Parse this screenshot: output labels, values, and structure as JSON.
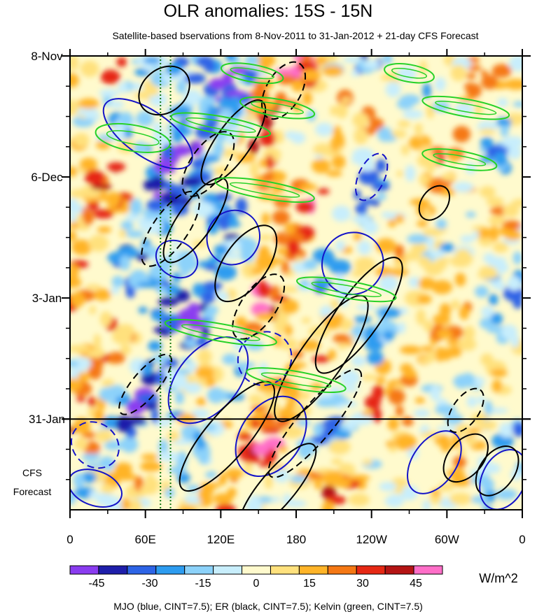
{
  "chart_data": {
    "type": "heatmap",
    "title": "OLR anomalies: 15S - 15N",
    "subtitle": "Satellite-based bservations from 8-Nov-2011 to 31-Jan-2012 + 21-day CFS Forecast",
    "x_ticks": [
      {
        "lon": 0,
        "label": "0"
      },
      {
        "lon": 60,
        "label": "60E"
      },
      {
        "lon": 120,
        "label": "120E"
      },
      {
        "lon": 180,
        "label": "180"
      },
      {
        "lon": 240,
        "label": "120W"
      },
      {
        "lon": 300,
        "label": "60W"
      },
      {
        "lon": 360,
        "label": "0"
      }
    ],
    "xlim": [
      0,
      360
    ],
    "y_ticks": [
      {
        "day": 0,
        "label": "8-Nov"
      },
      {
        "day": 28,
        "label": "6-Dec"
      },
      {
        "day": 56,
        "label": "3-Jan"
      },
      {
        "day": 84,
        "label": "31-Jan"
      }
    ],
    "ylim_days": [
      0,
      105
    ],
    "forecast_start_day": 84,
    "forecast_label_line1": "CFS",
    "forecast_label_line2": "Forecast",
    "colorbar": {
      "unit": "W/m^2",
      "tick_labels": [
        "-45",
        "-30",
        "-15",
        "0",
        "15",
        "30",
        "45"
      ],
      "tick_values": [
        -45,
        -30,
        -15,
        0,
        15,
        30,
        45
      ],
      "bounds": [
        -52.5,
        52.5
      ],
      "colors": [
        "#8a3cf0",
        "#1e1eaa",
        "#2d64e6",
        "#2d9cf0",
        "#8cd2fa",
        "#c8eefc",
        "#fffacd",
        "#ffe17d",
        "#ffb428",
        "#f57814",
        "#e62814",
        "#b41414",
        "#ff6ec8"
      ]
    },
    "footer": "MJO (blue, CINT=7.5); ER (black, CINT=7.5); Kelvin (green, CINT=7.5)",
    "colors": {
      "mjo": "#1414c8",
      "er": "#000000",
      "kelvin": "#28d228",
      "vertical_lines": "#147814"
    },
    "features": {
      "mjo_contours": [
        {
          "lon": 62,
          "day": 18,
          "rlon": 18,
          "rday": 12,
          "angle": -55,
          "dash": false
        },
        {
          "lon": 85,
          "day": 47,
          "rlon": 14,
          "rday": 5,
          "angle": -60,
          "dash": false
        },
        {
          "lon": 130,
          "day": 42,
          "rlon": 22,
          "rday": 6,
          "angle": -60,
          "dash": false
        },
        {
          "lon": 225,
          "day": 48,
          "rlon": 25,
          "rday": 7,
          "angle": -55,
          "dash": false
        },
        {
          "lon": 110,
          "day": 75,
          "rlon": 40,
          "rday": 7,
          "angle": -50,
          "dash": false
        },
        {
          "lon": 160,
          "day": 88,
          "rlon": 35,
          "rday": 7,
          "angle": -55,
          "dash": false
        },
        {
          "lon": 290,
          "day": 94,
          "rlon": 28,
          "rday": 5,
          "angle": -55,
          "dash": false
        },
        {
          "lon": 345,
          "day": 98,
          "rlon": 25,
          "rday": 5,
          "angle": -65,
          "dash": false
        },
        {
          "lon": 20,
          "day": 90,
          "rlon": 20,
          "rday": 5,
          "angle": 40,
          "dash": true
        },
        {
          "lon": 240,
          "day": 28,
          "rlon": 20,
          "rday": 3,
          "angle": -65,
          "dash": true
        },
        {
          "lon": 155,
          "day": 70,
          "rlon": 22,
          "rday": 6,
          "angle": -45,
          "dash": true
        },
        {
          "lon": 20,
          "day": 100,
          "rlon": 22,
          "rday": 4,
          "angle": 20,
          "dash": false
        }
      ],
      "er_contours": [
        {
          "lon": 75,
          "day": 8,
          "rlon": 22,
          "rday": 5,
          "angle": -40,
          "dash": false
        },
        {
          "lon": 130,
          "day": 20,
          "rlon": 40,
          "rday": 4,
          "angle": -55,
          "dash": false
        },
        {
          "lon": 100,
          "day": 38,
          "rlon": 40,
          "rday": 4,
          "angle": -55,
          "dash": false
        },
        {
          "lon": 140,
          "day": 48,
          "rlon": 35,
          "rday": 5,
          "angle": -55,
          "dash": false
        },
        {
          "lon": 200,
          "day": 70,
          "rlon": 60,
          "rday": 5,
          "angle": -55,
          "dash": false
        },
        {
          "lon": 230,
          "day": 60,
          "rlon": 55,
          "rday": 5,
          "angle": -55,
          "dash": false
        },
        {
          "lon": 125,
          "day": 88,
          "rlon": 55,
          "rday": 5,
          "angle": -50,
          "dash": false
        },
        {
          "lon": 165,
          "day": 100,
          "rlon": 45,
          "rday": 4,
          "angle": -50,
          "dash": false
        },
        {
          "lon": 290,
          "day": 34,
          "rlon": 15,
          "rday": 3,
          "angle": -55,
          "dash": false
        },
        {
          "lon": 315,
          "day": 93,
          "rlon": 22,
          "rday": 4,
          "angle": -50,
          "dash": false
        },
        {
          "lon": 340,
          "day": 96,
          "rlon": 22,
          "rday": 4,
          "angle": -55,
          "dash": false
        },
        {
          "lon": 110,
          "day": 25,
          "rlon": 30,
          "rday": 4,
          "angle": -55,
          "dash": true
        },
        {
          "lon": 80,
          "day": 40,
          "rlon": 35,
          "rday": 4,
          "angle": -55,
          "dash": true
        },
        {
          "lon": 150,
          "day": 58,
          "rlon": 30,
          "rday": 4,
          "angle": -55,
          "dash": true
        },
        {
          "lon": 195,
          "day": 85,
          "rlon": 55,
          "rday": 4,
          "angle": -50,
          "dash": true
        },
        {
          "lon": 60,
          "day": 76,
          "rlon": 30,
          "rday": 3,
          "angle": -50,
          "dash": true
        },
        {
          "lon": 315,
          "day": 82,
          "rlon": 20,
          "rday": 3,
          "angle": -55,
          "dash": true
        },
        {
          "lon": 170,
          "day": 8,
          "rlon": 25,
          "rday": 4,
          "angle": -60,
          "dash": true
        }
      ],
      "kelvin_contours": [
        {
          "lon": 50,
          "day": 19,
          "rlon": 30,
          "rday": 3,
          "angle": 10
        },
        {
          "lon": 145,
          "day": 4,
          "rlon": 25,
          "rday": 2,
          "angle": 10
        },
        {
          "lon": 165,
          "day": 12,
          "rlon": 30,
          "rday": 2,
          "angle": 10
        },
        {
          "lon": 120,
          "day": 16,
          "rlon": 40,
          "rday": 2,
          "angle": 10
        },
        {
          "lon": 270,
          "day": 4,
          "rlon": 20,
          "rday": 2,
          "angle": 10
        },
        {
          "lon": 315,
          "day": 12,
          "rlon": 35,
          "rday": 2,
          "angle": 10
        },
        {
          "lon": 310,
          "day": 24,
          "rlon": 30,
          "rday": 2,
          "angle": 10
        },
        {
          "lon": 155,
          "day": 31,
          "rlon": 40,
          "rday": 2,
          "angle": 10
        },
        {
          "lon": 220,
          "day": 54,
          "rlon": 40,
          "rday": 2,
          "angle": 10
        },
        {
          "lon": 120,
          "day": 64,
          "rlon": 45,
          "rday": 2,
          "angle": 10
        },
        {
          "lon": 180,
          "day": 75,
          "rlon": 40,
          "rday": 2,
          "angle": 10
        }
      ]
    }
  }
}
